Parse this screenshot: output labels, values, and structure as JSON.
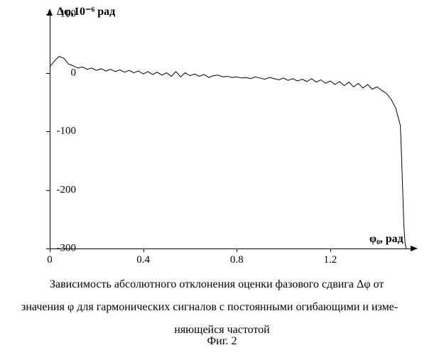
{
  "chart": {
    "type": "line",
    "y_axis_title": "Δφ,10⁻⁶ рад",
    "x_axis_title": "φ₀, рад",
    "ylim": [
      -300,
      100
    ],
    "xlim": [
      0,
      1.55
    ],
    "yticks": [
      -300,
      -200,
      -100,
      0,
      100
    ],
    "xticks": [
      0,
      0.4,
      0.8,
      1.2
    ],
    "ytick_labels": [
      "-300",
      "-200",
      "-100",
      "0",
      "100"
    ],
    "xtick_labels": [
      "0",
      "0.4",
      "0.8",
      "1.2"
    ],
    "background_color": "#ffffff",
    "line_color": "#000000",
    "line_width": 1,
    "series": {
      "x": [
        0.0,
        0.02,
        0.04,
        0.06,
        0.08,
        0.1,
        0.12,
        0.14,
        0.16,
        0.18,
        0.2,
        0.22,
        0.24,
        0.26,
        0.28,
        0.3,
        0.32,
        0.34,
        0.36,
        0.38,
        0.4,
        0.42,
        0.44,
        0.46,
        0.48,
        0.5,
        0.52,
        0.54,
        0.56,
        0.58,
        0.6,
        0.62,
        0.64,
        0.66,
        0.68,
        0.7,
        0.72,
        0.74,
        0.76,
        0.78,
        0.8,
        0.82,
        0.84,
        0.86,
        0.88,
        0.9,
        0.92,
        0.94,
        0.96,
        0.98,
        1.0,
        1.02,
        1.04,
        1.06,
        1.08,
        1.1,
        1.12,
        1.14,
        1.16,
        1.18,
        1.2,
        1.22,
        1.24,
        1.26,
        1.28,
        1.3,
        1.32,
        1.34,
        1.36,
        1.38,
        1.4,
        1.42,
        1.44,
        1.46,
        1.48,
        1.5,
        1.505,
        1.51,
        1.515,
        1.52,
        1.525
      ],
      "y": [
        10,
        20,
        28,
        25,
        15,
        12,
        8,
        10,
        6,
        8,
        4,
        7,
        3,
        6,
        2,
        5,
        1,
        4,
        0,
        3,
        -2,
        2,
        -3,
        1,
        -4,
        0,
        -6,
        2,
        -7,
        0,
        -5,
        -2,
        -6,
        -3,
        -8,
        -5,
        -4,
        -7,
        -6,
        -8,
        -7,
        -9,
        -8,
        -10,
        -7,
        -9,
        -11,
        -8,
        -10,
        -12,
        -9,
        -13,
        -10,
        -14,
        -11,
        -15,
        -10,
        -16,
        -12,
        -18,
        -14,
        -20,
        -15,
        -22,
        -16,
        -24,
        -18,
        -26,
        -20,
        -28,
        -24,
        -30,
        -35,
        -45,
        -60,
        -90,
        -140,
        -200,
        -260,
        -290,
        -300
      ]
    }
  },
  "caption_lines": [
    "Зависимость абсолютного отклонения оценки фазового сдвига Δφ от",
    "значения φ для гармонических сигналов с постоянными огибающими и изме-",
    "няющейся частотой"
  ],
  "figure_label": "Фиг. 2"
}
